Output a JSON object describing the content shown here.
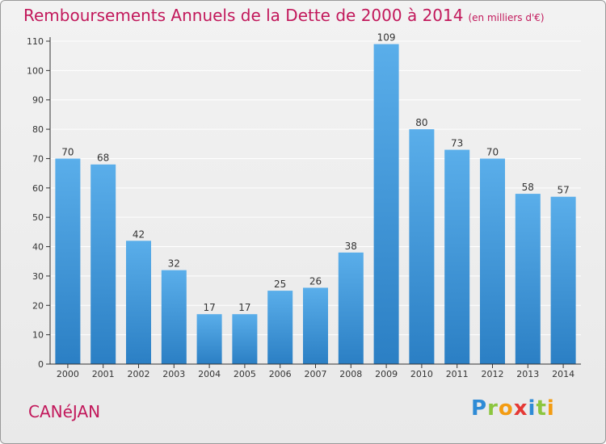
{
  "title": "Remboursements Annuels de la Dette de 2000 à 2014",
  "subtitle": "(en milliers d'€)",
  "commune": "CANéJAN",
  "logo": {
    "letters": [
      {
        "char": "P",
        "color": "#2e8bd6"
      },
      {
        "char": "r",
        "color": "#8cc63f"
      },
      {
        "char": "o",
        "color": "#f39c12"
      },
      {
        "char": "x",
        "color": "#e53935"
      },
      {
        "char": "i",
        "color": "#2e8bd6"
      },
      {
        "char": "t",
        "color": "#8cc63f"
      },
      {
        "char": "i",
        "color": "#f39c12"
      }
    ]
  },
  "colors": {
    "bar_top": "#5aaeea",
    "bar_bottom": "#2b7fc4",
    "title": "#c2185b",
    "grid": "#ffffff",
    "axis": "#333333"
  },
  "chart_data": {
    "type": "bar",
    "title": "Remboursements Annuels de la Dette de 2000 à 2014",
    "subtitle": "(en milliers d'€)",
    "categories": [
      "2000",
      "2001",
      "2002",
      "2003",
      "2004",
      "2005",
      "2006",
      "2007",
      "2008",
      "2009",
      "2010",
      "2011",
      "2012",
      "2013",
      "2014"
    ],
    "values": [
      70,
      68,
      42,
      32,
      17,
      17,
      25,
      26,
      38,
      109,
      80,
      73,
      70,
      58,
      57
    ],
    "ylim": [
      0,
      110
    ],
    "yticks": [
      0,
      10,
      20,
      30,
      40,
      50,
      60,
      70,
      80,
      90,
      100,
      110
    ],
    "grid": true,
    "data_labels": true
  }
}
